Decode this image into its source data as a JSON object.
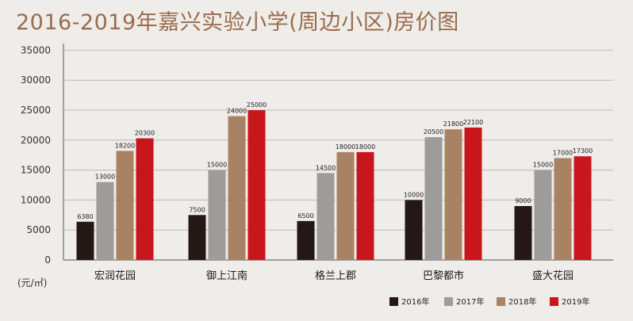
{
  "chart_data": {
    "type": "bar",
    "title": "2016-2019年嘉兴实验小学(周边小区)房价图",
    "ylabel": "(元/㎡)",
    "ylim": [
      0,
      35000
    ],
    "yticks": [
      0,
      5000,
      10000,
      15000,
      20000,
      25000,
      30000,
      35000
    ],
    "grid": true,
    "legend_position": "bottom-right",
    "categories": [
      "宏润花园",
      "御上江南",
      "格兰上郡",
      "巴黎都市",
      "盛大花园"
    ],
    "series": [
      {
        "name": "2016年",
        "color": "#231815",
        "values": [
          6380,
          7500,
          6500,
          10000,
          9000
        ]
      },
      {
        "name": "2017年",
        "color": "#9d9c9b",
        "values": [
          13000,
          15000,
          14500,
          20500,
          15000
        ]
      },
      {
        "name": "2018年",
        "color": "#a88262",
        "values": [
          18200,
          24000,
          18000,
          21800,
          17000
        ]
      },
      {
        "name": "2019年",
        "color": "#c8161d",
        "values": [
          20300,
          25000,
          18000,
          22100,
          17300
        ]
      }
    ]
  }
}
